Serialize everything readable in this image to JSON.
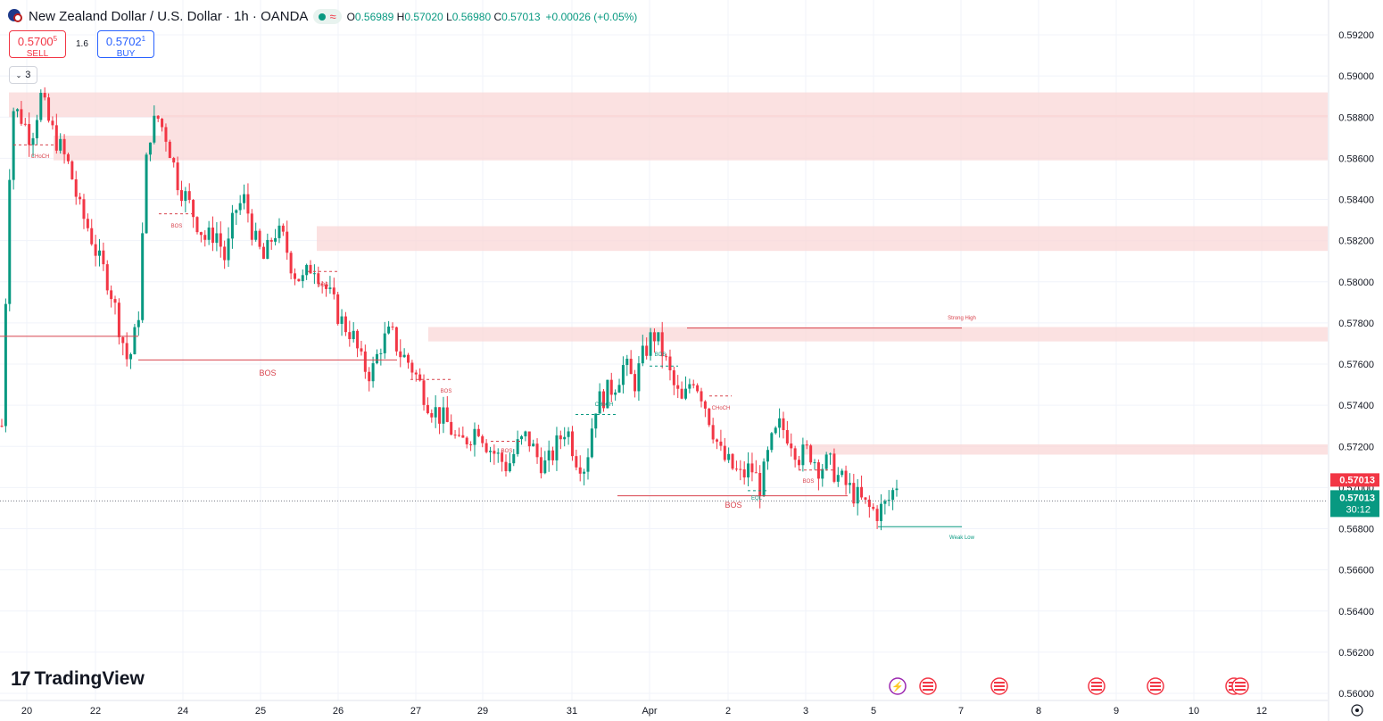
{
  "header": {
    "symbol": "New Zealand Dollar / U.S. Dollar · 1h · OANDA",
    "open_label": "O",
    "open": "0.56989",
    "high_label": "H",
    "high": "0.57020",
    "low_label": "L",
    "low": "0.56980",
    "close_label": "C",
    "close": "0.57013",
    "change": "+0.00026 (+0.05%)"
  },
  "trade": {
    "sell_price": "0.5700",
    "sell_price_sup": "5",
    "sell_label": "SELL",
    "buy_price": "0.5702",
    "buy_price_sup": "1",
    "buy_label": "BUY",
    "spread": "1.6"
  },
  "indicator_count": "3",
  "brand": "TradingView",
  "colors": {
    "up": "#089981",
    "down": "#f23645",
    "zone": "#fad4d4",
    "bos_line": "#d8434d",
    "axis_text": "#131722"
  },
  "chart_data": {
    "type": "candlestick",
    "interval": "1h",
    "ylim": [
      0.56,
      0.593
    ],
    "y_ticks": [
      "0.59200",
      "0.59000",
      "0.58800",
      "0.58600",
      "0.58400",
      "0.58200",
      "0.58000",
      "0.57800",
      "0.57600",
      "0.57400",
      "0.57200",
      "0.57000",
      "0.56800",
      "0.56600",
      "0.56400",
      "0.56200",
      "0.56000"
    ],
    "x_ticks": [
      "20",
      "22",
      "24",
      "25",
      "26",
      "27",
      "29",
      "31",
      "Apr",
      "2",
      "3",
      "5",
      "7",
      "8",
      "9",
      "10",
      "12"
    ],
    "last_price": "0.57013",
    "countdown": "30:12",
    "bid_price": "0.57013",
    "path": [
      0.573,
      0.5885,
      0.588,
      0.587,
      0.589,
      0.5875,
      0.5865,
      0.5855,
      0.5835,
      0.5825,
      0.581,
      0.58,
      0.578,
      0.576,
      0.578,
      0.587,
      0.588,
      0.587,
      0.585,
      0.584,
      0.583,
      0.582,
      0.5825,
      0.581,
      0.5835,
      0.584,
      0.582,
      0.581,
      0.5825,
      0.582,
      0.5805,
      0.58,
      0.581,
      0.58,
      0.579,
      0.578,
      0.5775,
      0.576,
      0.5755,
      0.577,
      0.5775,
      0.5765,
      0.576,
      0.575,
      0.574,
      0.5735,
      0.573,
      0.572,
      0.5725,
      0.573,
      0.572,
      0.5715,
      0.571,
      0.572,
      0.5725,
      0.5715,
      0.571,
      0.572,
      0.573,
      0.5715,
      0.571,
      0.574,
      0.5745,
      0.575,
      0.576,
      0.575,
      0.5765,
      0.5775,
      0.5765,
      0.575,
      0.574,
      0.5755,
      0.5745,
      0.573,
      0.5715,
      0.571,
      0.5705,
      0.571,
      0.57,
      0.572,
      0.573,
      0.5725,
      0.5715,
      0.5718,
      0.571,
      0.5712,
      0.5705,
      0.57,
      0.5695,
      0.569,
      0.5688,
      0.5692,
      0.5702
    ],
    "zones": [
      {
        "from": 0.588,
        "to": 0.5892
      },
      {
        "from": 0.5871,
        "to": 0.5881
      },
      {
        "from": 0.5859,
        "to": 0.5871
      },
      {
        "from": 0.5815,
        "to": 0.5827
      },
      {
        "from": 0.5771,
        "to": 0.5778
      },
      {
        "from": 0.5716,
        "to": 0.5721
      }
    ],
    "annotations": [
      {
        "text": "CHoCH",
        "kind": "small",
        "color": "#d8434d"
      },
      {
        "text": "BOS",
        "kind": "small",
        "color": "#d8434d"
      },
      {
        "text": "BOS",
        "kind": "small",
        "color": "#d8434d"
      },
      {
        "text": "BOS",
        "kind": "large",
        "color": "#d8434d"
      },
      {
        "text": "BOS",
        "kind": "small",
        "color": "#d8434d"
      },
      {
        "text": "BOS",
        "kind": "small",
        "color": "#d8434d"
      },
      {
        "text": "CHoCH",
        "kind": "small",
        "color": "#089981"
      },
      {
        "text": "BOS",
        "kind": "small",
        "color": "#089981"
      },
      {
        "text": "CHoCH",
        "kind": "small",
        "color": "#d8434d"
      },
      {
        "text": "Strong High",
        "kind": "small",
        "color": "#d8434d"
      },
      {
        "text": "BOS",
        "kind": "small",
        "color": "#d8434d"
      },
      {
        "text": "EQL",
        "kind": "small",
        "color": "#089981"
      },
      {
        "text": "BOS",
        "kind": "large",
        "color": "#d8434d"
      },
      {
        "text": "Weak Low",
        "kind": "small",
        "color": "#089981"
      }
    ]
  }
}
